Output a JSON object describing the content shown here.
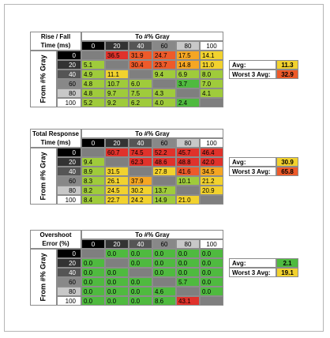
{
  "tables": [
    {
      "title": [
        "Rise / Fall",
        "Time (ms)"
      ],
      "column_header": "To #% Gray",
      "row_header": "From #% Gray",
      "columns": [
        "0",
        "20",
        "40",
        "60",
        "80",
        "100"
      ],
      "rows": [
        {
          "label": "0",
          "values": [
            null,
            "36.5",
            "31.9",
            "24.7",
            "17.5",
            "14.1"
          ],
          "colors": [
            null,
            "#e0322b",
            "#ee5a2a",
            "#ee5a2a",
            "#f5a623",
            "#f2d22e"
          ]
        },
        {
          "label": "20",
          "values": [
            "5.1",
            null,
            "30.4",
            "23.7",
            "14.8",
            "11.0"
          ],
          "colors": [
            "#9fcb3b",
            null,
            "#ee5a2a",
            "#ee5a2a",
            "#f5a623",
            "#f2d22e"
          ]
        },
        {
          "label": "40",
          "values": [
            "4.9",
            "11.1",
            null,
            "9.4",
            "6.9",
            "8.0"
          ],
          "colors": [
            "#9fcb3b",
            "#f2d22e",
            null,
            "#9fcb3b",
            "#9fcb3b",
            "#9fcb3b"
          ]
        },
        {
          "label": "60",
          "values": [
            "4.8",
            "10.7",
            "6.0",
            null,
            "3.7",
            "7.0"
          ],
          "colors": [
            "#9fcb3b",
            "#9fcb3b",
            "#9fcb3b",
            null,
            "#4fba3f",
            "#9fcb3b"
          ]
        },
        {
          "label": "80",
          "values": [
            "4.8",
            "9.7",
            "7.5",
            "4.3",
            null,
            "4.1"
          ],
          "colors": [
            "#9fcb3b",
            "#9fcb3b",
            "#9fcb3b",
            "#9fcb3b",
            null,
            "#9fcb3b"
          ]
        },
        {
          "label": "100",
          "values": [
            "5.2",
            "9.2",
            "6.2",
            "4.0",
            "2.4",
            null
          ],
          "colors": [
            "#9fcb3b",
            "#9fcb3b",
            "#9fcb3b",
            "#9fcb3b",
            "#4fba3f",
            null
          ]
        }
      ],
      "summary": [
        {
          "label": "Avg:",
          "value": "11.3",
          "color": "#f2d22e"
        },
        {
          "label": "Worst 3 Avg:",
          "value": "32.9",
          "color": "#ee5a2a"
        }
      ]
    },
    {
      "title": [
        "Total Response",
        "Time (ms)"
      ],
      "column_header": "To #% Gray",
      "row_header": "From #% Gray",
      "columns": [
        "0",
        "20",
        "40",
        "60",
        "80",
        "100"
      ],
      "rows": [
        {
          "label": "0",
          "values": [
            null,
            "60.7",
            "74.5",
            "52.2",
            "45.7",
            "46.4"
          ],
          "colors": [
            null,
            "#e0322b",
            "#e0322b",
            "#e0322b",
            "#e0322b",
            "#e0322b"
          ]
        },
        {
          "label": "20",
          "values": [
            "9.4",
            null,
            "62.3",
            "48.6",
            "48.8",
            "42.0"
          ],
          "colors": [
            "#9fcb3b",
            null,
            "#e0322b",
            "#e0322b",
            "#e0322b",
            "#e0322b"
          ]
        },
        {
          "label": "40",
          "values": [
            "8.9",
            "31.5",
            null,
            "27.8",
            "41.6",
            "34.5"
          ],
          "colors": [
            "#9fcb3b",
            "#f2d22e",
            null,
            "#f2d22e",
            "#ee5a2a",
            "#f5a623"
          ]
        },
        {
          "label": "60",
          "values": [
            "8.3",
            "26.1",
            "37.9",
            null,
            "10.1",
            "21.2"
          ],
          "colors": [
            "#9fcb3b",
            "#f2d22e",
            "#f5a623",
            null,
            "#9fcb3b",
            "#f2d22e"
          ]
        },
        {
          "label": "80",
          "values": [
            "8.2",
            "24.5",
            "30.2",
            "13.7",
            null,
            "20.9"
          ],
          "colors": [
            "#9fcb3b",
            "#f2d22e",
            "#f2d22e",
            "#9fcb3b",
            null,
            "#f2d22e"
          ]
        },
        {
          "label": "100",
          "values": [
            "8.4",
            "22.7",
            "24.2",
            "14.9",
            "21.0",
            null
          ],
          "colors": [
            "#9fcb3b",
            "#f2d22e",
            "#f2d22e",
            "#9fcb3b",
            "#f2d22e",
            null
          ]
        }
      ],
      "summary": [
        {
          "label": "Avg:",
          "value": "30.9",
          "color": "#f2d22e"
        },
        {
          "label": "Worst 3 Avg:",
          "value": "65.8",
          "color": "#ee5a2a"
        }
      ]
    },
    {
      "title": [
        "Overshoot",
        "Error (%)"
      ],
      "column_header": "To #% Gray",
      "row_header": "From #% Gray",
      "columns": [
        "0",
        "20",
        "40",
        "60",
        "80",
        "100"
      ],
      "rows": [
        {
          "label": "0",
          "values": [
            null,
            "0.0",
            "0.0",
            "0.0",
            "0.0",
            "0.0"
          ],
          "colors": [
            null,
            "#4fba3f",
            "#4fba3f",
            "#4fba3f",
            "#4fba3f",
            "#4fba3f"
          ]
        },
        {
          "label": "20",
          "values": [
            "0.0",
            null,
            "0.0",
            "0.0",
            "0.0",
            "0.0"
          ],
          "colors": [
            "#4fba3f",
            null,
            "#4fba3f",
            "#4fba3f",
            "#4fba3f",
            "#4fba3f"
          ]
        },
        {
          "label": "40",
          "values": [
            "0.0",
            "0.0",
            null,
            "0.0",
            "0.0",
            "0.0"
          ],
          "colors": [
            "#4fba3f",
            "#4fba3f",
            null,
            "#4fba3f",
            "#4fba3f",
            "#4fba3f"
          ]
        },
        {
          "label": "60",
          "values": [
            "0.0",
            "0.0",
            "0.0",
            null,
            "5.7",
            "0.0"
          ],
          "colors": [
            "#4fba3f",
            "#4fba3f",
            "#4fba3f",
            null,
            "#4fba3f",
            "#4fba3f"
          ]
        },
        {
          "label": "80",
          "values": [
            "0.0",
            "0.0",
            "0.0",
            "4.6",
            null,
            "0.0"
          ],
          "colors": [
            "#4fba3f",
            "#4fba3f",
            "#4fba3f",
            "#4fba3f",
            null,
            "#4fba3f"
          ]
        },
        {
          "label": "100",
          "values": [
            "0.0",
            "0.0",
            "0.0",
            "8.6",
            "43.1",
            null
          ],
          "colors": [
            "#4fba3f",
            "#4fba3f",
            "#4fba3f",
            "#4fba3f",
            "#e0322b",
            null
          ]
        }
      ],
      "summary": [
        {
          "label": "Avg:",
          "value": "2.1",
          "color": "#4fba3f"
        },
        {
          "label": "Worst 3 Avg:",
          "value": "19.1",
          "color": "#f2d22e"
        }
      ]
    }
  ]
}
